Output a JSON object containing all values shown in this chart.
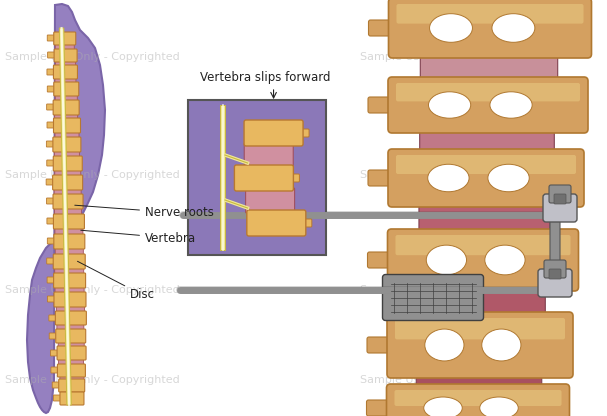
{
  "bg_color": "#ffffff",
  "watermark_color": "#b0b0b0",
  "watermark_alpha": 0.5,
  "body_fill_color": "#9580c0",
  "body_outline_color": "#7a65a8",
  "spine_vertebra_fill": "#e8b860",
  "spine_vertebra_outline": "#b87830",
  "disc_fill": "#d090a0",
  "disc_outline": "#a05060",
  "nerve_fill": "#f0e898",
  "nerve_outline": "#c8b840",
  "inset_bg": "#8b78b8",
  "inset_border": "#555555",
  "annotation_color": "#222222",
  "annotation_fontsize": 8.5,
  "label_nerve_roots": "Nerve roots",
  "label_vertebra": "Vertebra",
  "label_disc": "Disc",
  "label_slips": "Vertebra slips forward",
  "screw_color": "#909090",
  "screw_dark": "#555555",
  "screw_light": "#c0c0c8",
  "cage_color": "#909090",
  "right_disc_injured": "#c05870",
  "right_disc_fill": "#b06878",
  "right_bone_fill": "#d4a060",
  "right_bone_dark": "#b07830",
  "right_bone_light": "#e8c880"
}
